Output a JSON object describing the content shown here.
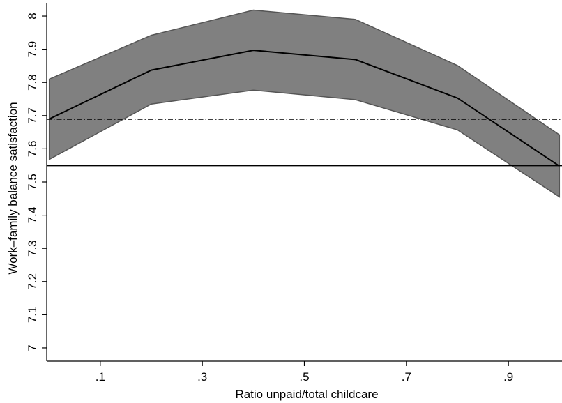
{
  "chart_data": {
    "type": "line",
    "title": "",
    "xlabel": "Ratio unpaid/total childcare",
    "ylabel": "Work–family balance satisfaction",
    "xlim": [
      -0.005,
      1.005
    ],
    "ylim": [
      6.96,
      8.04
    ],
    "x_ticks": [
      0.1,
      0.3,
      0.5,
      0.7,
      0.9
    ],
    "x_tick_labels": [
      ".1",
      ".3",
      ".5",
      ".7",
      ".9"
    ],
    "y_ticks": [
      7,
      7.1,
      7.2,
      7.3,
      7.4,
      7.5,
      7.6,
      7.7,
      7.8,
      7.9,
      8
    ],
    "y_tick_labels": [
      "7",
      "7.1",
      "7.2",
      "7.3",
      "7.4",
      "7.5",
      "7.6",
      "7.7",
      "7.8",
      "7.9",
      "8"
    ],
    "x": [
      0,
      0.2,
      0.4,
      0.6,
      0.8,
      1.0
    ],
    "series": [
      {
        "role": "estimate",
        "values": [
          7.69,
          7.837,
          7.897,
          7.869,
          7.753,
          7.548
        ]
      },
      {
        "role": "ci_upper",
        "values": [
          7.81,
          7.942,
          8.018,
          7.99,
          7.851,
          7.642
        ]
      },
      {
        "role": "ci_lower",
        "values": [
          7.568,
          7.735,
          7.777,
          7.748,
          7.657,
          7.455
        ]
      }
    ],
    "reference_lines": [
      {
        "style": "solid",
        "y": 7.549
      },
      {
        "style": "dash-dot",
        "y": 7.689
      }
    ],
    "grid": false,
    "legend": "none",
    "colors": {
      "band_fill": "#808080",
      "band_edge": "#555555",
      "line": "#000000"
    }
  }
}
